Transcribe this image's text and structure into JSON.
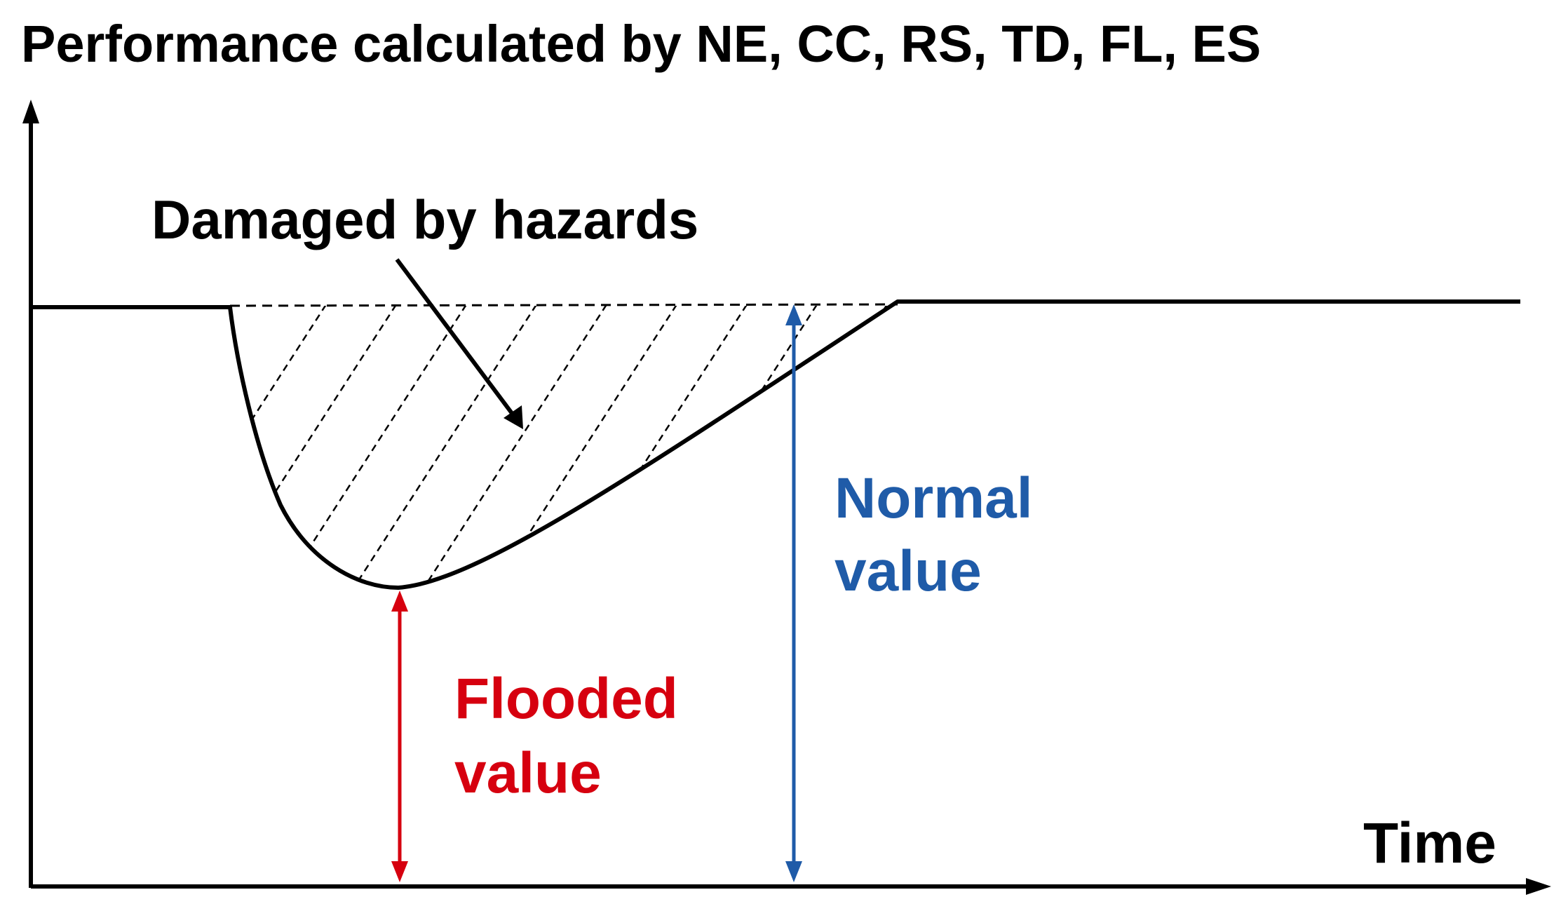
{
  "title": "Performance calculated by NE, CC, RS, TD, FL, ES",
  "labels": {
    "damaged": "Damaged by hazards",
    "time": "Time",
    "normal_line1": "Normal",
    "normal_line2": "value",
    "flooded_line1": "Flooded",
    "flooded_line2": "value"
  },
  "colors": {
    "axis": "#000000",
    "normal": "#1f5ba8",
    "flooded": "#d6000f"
  }
}
